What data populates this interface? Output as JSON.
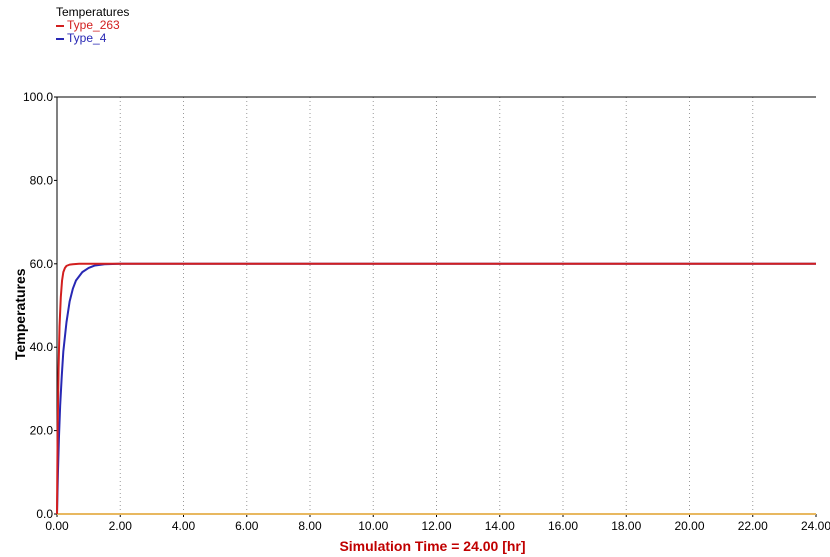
{
  "chart_data": {
    "type": "line",
    "legend": {
      "title": "Temperatures",
      "position": "top-left"
    },
    "ylabel": "Temperatures",
    "xlabel": "Simulation Time =  24.00 [hr]",
    "xlim": [
      0,
      24
    ],
    "ylim": [
      0,
      100
    ],
    "x_ticks": [
      "0.00",
      "2.00",
      "4.00",
      "6.00",
      "8.00",
      "10.00",
      "12.00",
      "14.00",
      "16.00",
      "18.00",
      "20.00",
      "22.00",
      "24.00"
    ],
    "y_ticks": [
      "0.0",
      "20.0",
      "40.0",
      "60.0",
      "80.0",
      "100.0"
    ],
    "grid": "vertical dotted at x ticks, solid line at y=100",
    "series": [
      {
        "name": "Type_263",
        "color": "#d21f1f",
        "x": [
          0,
          0.02,
          0.05,
          0.08,
          0.12,
          0.16,
          0.2,
          0.25,
          0.3,
          0.4,
          0.5,
          0.7,
          1.0,
          2.0,
          24.0
        ],
        "y": [
          0,
          20,
          35,
          45,
          52,
          56,
          58,
          59,
          59.5,
          59.8,
          59.9,
          60,
          60,
          60,
          60
        ]
      },
      {
        "name": "Type_4",
        "color": "#2828b4",
        "x": [
          0,
          0.03,
          0.06,
          0.1,
          0.15,
          0.2,
          0.3,
          0.4,
          0.5,
          0.6,
          0.8,
          1.0,
          1.2,
          1.5,
          2.0,
          24.0
        ],
        "y": [
          0,
          10,
          18,
          26,
          33,
          39,
          46,
          51,
          54,
          56,
          58,
          59,
          59.6,
          59.9,
          60,
          60
        ]
      },
      {
        "name": "",
        "color": "#e8b860",
        "x": [
          0,
          24
        ],
        "y": [
          0,
          0
        ]
      }
    ]
  }
}
